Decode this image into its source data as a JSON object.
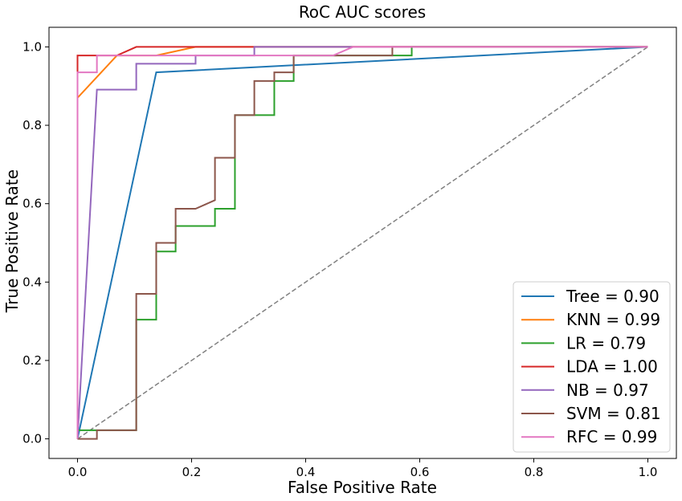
{
  "chart_data": {
    "type": "line",
    "title": "RoC AUC scores",
    "xlabel": "False Positive Rate",
    "ylabel": "True Positive Rate",
    "xlim": [
      -0.05,
      1.05
    ],
    "ylim": [
      -0.05,
      1.05
    ],
    "xticks": [
      0.0,
      0.2,
      0.4,
      0.6,
      0.8,
      1.0
    ],
    "yticks": [
      0.0,
      0.2,
      0.4,
      0.6,
      0.8,
      1.0
    ],
    "xtick_labels": [
      "0.0",
      "0.2",
      "0.4",
      "0.6",
      "0.8",
      "1.0"
    ],
    "ytick_labels": [
      "0.0",
      "0.2",
      "0.4",
      "0.6",
      "0.8",
      "1.0"
    ],
    "grid": false,
    "legend_position": "bottom-right",
    "reference_line": {
      "x": [
        0,
        1
      ],
      "y": [
        0,
        1
      ],
      "color": "#808080",
      "style": "dashed"
    },
    "series": [
      {
        "name": "Tree = 0.90",
        "color": "#1f77b4",
        "x": [
          0,
          0.138,
          1.0
        ],
        "y": [
          0,
          0.935,
          1.0
        ]
      },
      {
        "name": "KNN = 0.99",
        "color": "#ff7f0e",
        "x": [
          0,
          0,
          0.069,
          0.138,
          0.207,
          1.0
        ],
        "y": [
          0,
          0.87,
          0.978,
          0.978,
          1.0,
          1.0
        ]
      },
      {
        "name": "LR = 0.79",
        "color": "#2ca02c",
        "x": [
          0,
          0,
          0.034,
          0.034,
          0.103,
          0.103,
          0.138,
          0.138,
          0.172,
          0.172,
          0.241,
          0.241,
          0.276,
          0.276,
          0.31,
          0.31,
          0.345,
          0.345,
          0.379,
          0.379,
          0.552,
          0.552,
          0.586,
          0.586,
          1.0
        ],
        "y": [
          0,
          0.022,
          0.022,
          0.022,
          0.022,
          0.304,
          0.304,
          0.478,
          0.478,
          0.543,
          0.543,
          0.587,
          0.587,
          0.826,
          0.826,
          0.826,
          0.826,
          0.913,
          0.913,
          0.978,
          0.978,
          0.978,
          0.978,
          1.0,
          1.0
        ]
      },
      {
        "name": "LDA = 1.00",
        "color": "#d62728",
        "x": [
          0,
          0,
          0.069,
          0.103,
          0.31,
          1.0
        ],
        "y": [
          0,
          0.978,
          0.978,
          1.0,
          1.0,
          1.0
        ]
      },
      {
        "name": "NB = 0.97",
        "color": "#9467bd",
        "x": [
          0,
          0.034,
          0.103,
          0.103,
          0.207,
          0.207,
          0.31,
          0.31,
          0.483,
          1.0
        ],
        "y": [
          0,
          0.891,
          0.891,
          0.957,
          0.957,
          0.978,
          0.978,
          1.0,
          1.0,
          1.0
        ]
      },
      {
        "name": "SVM = 0.81",
        "color": "#8c564b",
        "x": [
          0,
          0,
          0.034,
          0.034,
          0.103,
          0.103,
          0.138,
          0.138,
          0.172,
          0.172,
          0.207,
          0.207,
          0.241,
          0.241,
          0.241,
          0.276,
          0.276,
          0.31,
          0.31,
          0.345,
          0.345,
          0.379,
          0.379,
          0.552,
          0.552,
          1.0
        ],
        "y": [
          0,
          0,
          0,
          0.022,
          0.022,
          0.37,
          0.37,
          0.5,
          0.5,
          0.587,
          0.587,
          0.587,
          0.609,
          0.609,
          0.717,
          0.717,
          0.826,
          0.826,
          0.913,
          0.913,
          0.935,
          0.935,
          0.978,
          0.978,
          1.0,
          1.0
        ]
      },
      {
        "name": "RFC = 0.99",
        "color": "#e377c2",
        "x": [
          0,
          0,
          0.034,
          0.034,
          0.448,
          0.483,
          1.0
        ],
        "y": [
          0,
          0.935,
          0.935,
          0.978,
          0.978,
          1.0,
          1.0
        ]
      }
    ]
  }
}
